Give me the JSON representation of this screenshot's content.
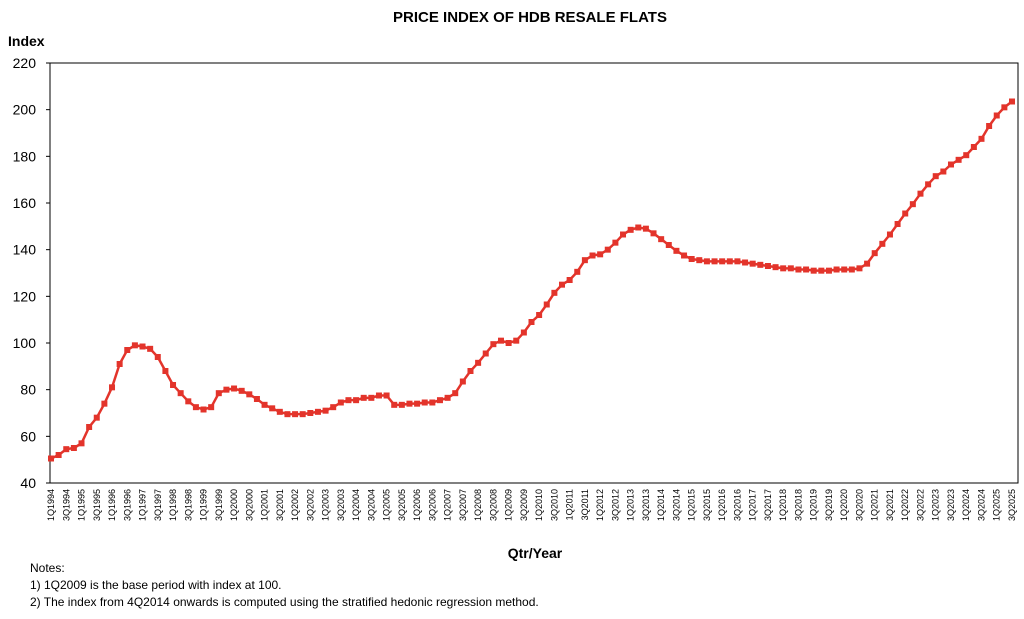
{
  "chart_data": {
    "type": "line",
    "title": "PRICE INDEX OF HDB RESALE FLATS",
    "y_label": "Index",
    "x_label": "Qtr/Year",
    "notes": [
      "Notes:",
      "1) 1Q2009 is the base period with index at 100.",
      "2) The index from 4Q2014 onwards is computed using the stratified hedonic regression method."
    ],
    "categories": [
      "1Q1994",
      null,
      "3Q1994",
      null,
      "1Q1995",
      null,
      "3Q1995",
      null,
      "1Q1996",
      null,
      "3Q1996",
      null,
      "1Q1997",
      null,
      "3Q1997",
      null,
      "1Q1998",
      null,
      "3Q1998",
      null,
      "1Q1999",
      null,
      "3Q1999",
      null,
      "1Q2000",
      null,
      "3Q2000",
      null,
      "1Q2001",
      null,
      "3Q2001",
      null,
      "1Q2002",
      null,
      "3Q2002",
      null,
      "1Q2003",
      null,
      "3Q2003",
      null,
      "1Q2004",
      null,
      "3Q2004",
      null,
      "1Q2005",
      null,
      "3Q2005",
      null,
      "1Q2006",
      null,
      "3Q2006",
      null,
      "1Q2007",
      null,
      "3Q2007",
      null,
      "1Q2008",
      null,
      "3Q2008",
      null,
      "1Q2009",
      null,
      "3Q2009",
      null,
      "1Q2010",
      null,
      "3Q2010",
      null,
      "1Q2011",
      null,
      "3Q2011",
      null,
      "1Q2012",
      null,
      "3Q2012",
      null,
      "1Q2013",
      null,
      "3Q2013",
      null,
      "1Q2014",
      null,
      "3Q2014",
      null,
      "1Q2015",
      null,
      "3Q2015",
      null,
      "1Q2016",
      null,
      "3Q2016",
      null,
      "1Q2017",
      null,
      "3Q2017",
      null,
      "1Q2018",
      null,
      "3Q2018",
      null,
      "1Q2019",
      null,
      "3Q2019",
      null,
      "1Q2020",
      null,
      "3Q2020",
      null,
      "1Q2021",
      null,
      "3Q2021",
      null,
      "1Q2022",
      null,
      "3Q2022",
      null,
      "1Q2023",
      null,
      "3Q2023",
      null,
      "1Q2024",
      null,
      "3Q2024",
      null,
      "1Q2025",
      null,
      "3Q2025"
    ],
    "values": [
      50.5,
      52,
      54.5,
      55,
      57,
      64,
      68,
      74,
      81,
      91,
      97,
      99,
      98.5,
      97.5,
      94,
      88,
      82,
      78.5,
      75,
      72.5,
      71.5,
      72.5,
      78.5,
      80,
      80.5,
      79.5,
      78,
      76,
      73.5,
      72,
      70.5,
      69.5,
      69.5,
      69.5,
      70,
      70.5,
      71,
      72.5,
      74.5,
      75.5,
      75.5,
      76.5,
      76.5,
      77.5,
      77.5,
      73.5,
      73.5,
      74,
      74,
      74.5,
      74.5,
      75.5,
      76.5,
      78.5,
      83.5,
      88,
      91.5,
      95.5,
      99.5,
      101,
      100,
      101,
      104.5,
      109,
      112,
      116.5,
      121.5,
      125,
      127,
      130.5,
      135.5,
      137.5,
      138,
      140,
      143,
      146.5,
      148.5,
      149.5,
      149,
      147,
      144.5,
      142,
      139.5,
      137.5,
      136,
      135.5,
      135,
      135,
      135,
      135,
      135,
      134.5,
      134,
      133.5,
      133,
      132.5,
      132,
      132,
      131.5,
      131.5,
      131,
      131,
      131,
      131.5,
      131.5,
      131.5,
      132,
      134,
      138.5,
      142.5,
      146.5,
      151,
      155.5,
      159.5,
      164,
      168,
      171.5,
      173.5,
      176.5,
      178.5,
      180.5,
      184,
      187.5,
      193,
      197.5,
      201,
      203.5
    ],
    "color": "#e3342b",
    "ylim": [
      40,
      220
    ],
    "yticks": [
      40,
      60,
      80,
      100,
      120,
      140,
      160,
      180,
      200,
      220
    ],
    "grid": false
  }
}
